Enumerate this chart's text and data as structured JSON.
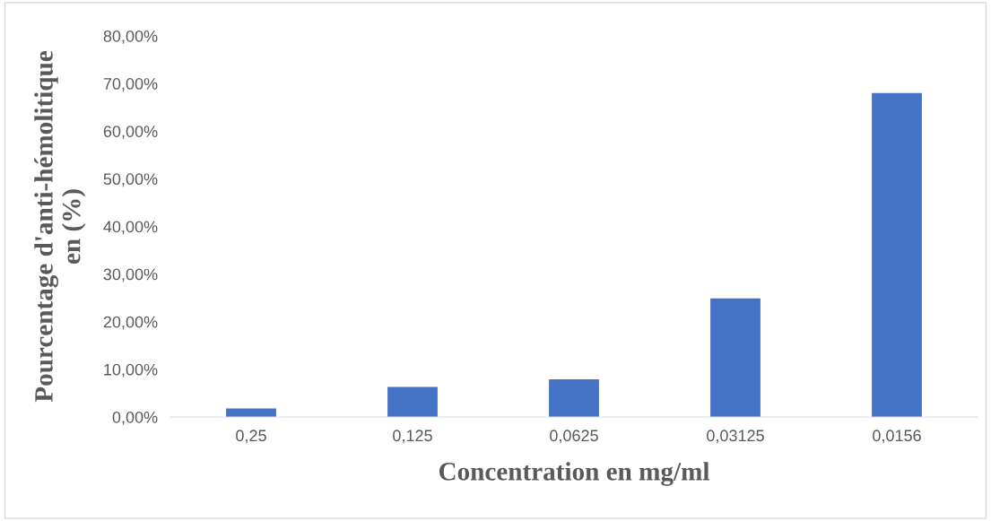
{
  "chart_data": {
    "type": "bar",
    "xlabel": "Concentration en mg/ml",
    "ylabel": "Pourcentage d'anti-hémolitique\nen (%)",
    "categories": [
      "0,25",
      "0,125",
      "0,0625",
      "0,03125",
      "0,0156"
    ],
    "values": [
      1.8,
      6.3,
      7.9,
      24.9,
      68.0
    ],
    "color": "#4472c4",
    "ylim": [
      0,
      80
    ],
    "yticks": [
      {
        "value": 0,
        "label": "0,00%"
      },
      {
        "value": 10,
        "label": "10,00%"
      },
      {
        "value": 20,
        "label": "20,00%"
      },
      {
        "value": 30,
        "label": "30,00%"
      },
      {
        "value": 40,
        "label": "40,00%"
      },
      {
        "value": 50,
        "label": "50,00%"
      },
      {
        "value": 60,
        "label": "60,00%"
      },
      {
        "value": 70,
        "label": "70,00%"
      },
      {
        "value": 80,
        "label": "80,00%"
      }
    ],
    "grid": false
  }
}
